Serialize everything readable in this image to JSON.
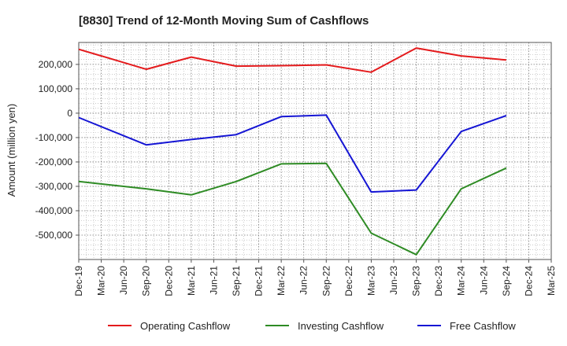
{
  "chart_data": {
    "type": "line",
    "title": "[8830]  Trend of 12-Month Moving Sum of Cashflows",
    "xlabel": "",
    "ylabel": "Amount (million yen)",
    "categories": [
      "Dec-19",
      "Mar-20",
      "Jun-20",
      "Sep-20",
      "Dec-20",
      "Mar-21",
      "Jun-21",
      "Sep-21",
      "Dec-21",
      "Mar-22",
      "Jun-22",
      "Sep-22",
      "Dec-22",
      "Mar-23",
      "Jun-23",
      "Sep-23",
      "Dec-23",
      "Mar-24",
      "Jun-24",
      "Sep-24",
      "Dec-24",
      "Mar-25"
    ],
    "yticks": [
      200000,
      100000,
      0,
      -100000,
      -200000,
      -300000,
      -400000,
      -500000
    ],
    "ytick_labels": [
      "200,000",
      "100,000",
      "0",
      "-100,000",
      "-200,000",
      "-300,000",
      "-400,000",
      "-500,000"
    ],
    "ylim": [
      -600000,
      290000
    ],
    "grid": true,
    "legend_position": "bottom",
    "series": [
      {
        "name": "Operating Cashflow",
        "color": "#e41a1c",
        "points": [
          [
            0,
            262000
          ],
          [
            1,
            235000
          ],
          [
            3,
            180000
          ],
          [
            5,
            230000
          ],
          [
            7,
            193000
          ],
          [
            9,
            195000
          ],
          [
            11,
            198000
          ],
          [
            13,
            168000
          ],
          [
            15,
            267000
          ],
          [
            17,
            235000
          ],
          [
            19,
            218000
          ]
        ]
      },
      {
        "name": "Investing Cashflow",
        "color": "#2e8b24",
        "points": [
          [
            0,
            -280000
          ],
          [
            3,
            -310000
          ],
          [
            5,
            -335000
          ],
          [
            7,
            -280000
          ],
          [
            9,
            -208000
          ],
          [
            11,
            -206000
          ],
          [
            13,
            -492000
          ],
          [
            15,
            -580000
          ],
          [
            17,
            -310000
          ],
          [
            19,
            -225000
          ]
        ]
      },
      {
        "name": "Free Cashflow",
        "color": "#1515d4",
        "points": [
          [
            0,
            -18000
          ],
          [
            3,
            -130000
          ],
          [
            5,
            -108000
          ],
          [
            7,
            -88000
          ],
          [
            9,
            -14000
          ],
          [
            11,
            -8000
          ],
          [
            13,
            -323000
          ],
          [
            15,
            -315000
          ],
          [
            17,
            -75000
          ],
          [
            19,
            -10000
          ]
        ]
      }
    ]
  }
}
